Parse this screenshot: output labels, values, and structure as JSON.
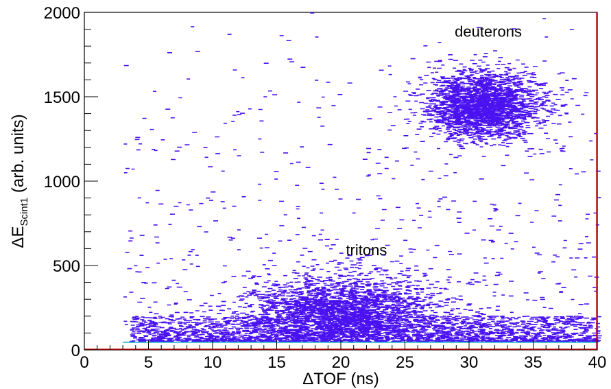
{
  "chart_data": {
    "type": "heatmap",
    "xlabel": "ΔTOF (ns)",
    "ylabel": {
      "prefix": "ΔE",
      "subscript": "Scint1",
      "suffix": " (arb. units)"
    },
    "xlim": [
      0,
      40
    ],
    "ylim": [
      0,
      2000
    ],
    "x_ticks": [
      0,
      5,
      10,
      15,
      20,
      25,
      30,
      35,
      40
    ],
    "y_ticks": [
      0,
      500,
      1000,
      1500,
      2000
    ],
    "grid": false,
    "colors": {
      "points": "#4a12f0",
      "points_dense": "#2a0fb0",
      "baseline": "#00a8c8",
      "axis_edge": "#c00000"
    },
    "clusters": [
      {
        "label": "tritons",
        "label_x": 22,
        "label_y": 560,
        "center_x": 20,
        "center_y": 220,
        "sigma_x": 3.8,
        "sigma_y": 110,
        "count": 2600
      },
      {
        "label": "deuterons",
        "label_x": 31.5,
        "label_y": 1855,
        "center_x": 31,
        "center_y": 1450,
        "sigma_x": 2.3,
        "sigma_y": 100,
        "count": 2300
      }
    ],
    "band": {
      "x_range": [
        3.5,
        40
      ],
      "y_range": [
        50,
        200
      ],
      "count": 2200
    },
    "background_count": 650
  }
}
